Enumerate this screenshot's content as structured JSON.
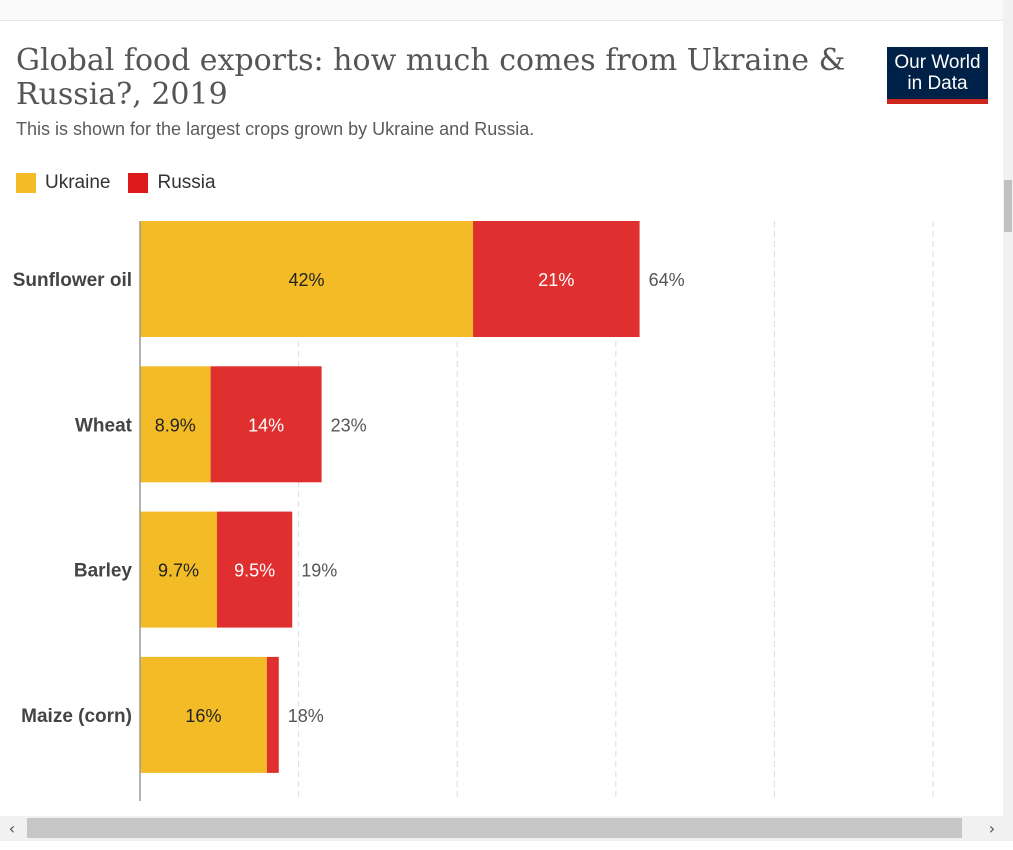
{
  "chart_data": {
    "type": "bar",
    "orientation": "horizontal",
    "stacked": true,
    "title": "Global food exports: how much comes from Ukraine & Russia?, 2019",
    "subtitle": "This is shown for the largest crops grown by Ukraine and Russia.",
    "categories": [
      "Sunflower oil",
      "Wheat",
      "Barley",
      "Maize (corn)"
    ],
    "series": [
      {
        "name": "Ukraine",
        "color": "#f3bc26",
        "values": [
          42,
          8.9,
          9.7,
          16
        ],
        "labels": [
          "42%",
          "8.9%",
          "9.7%",
          "16%"
        ]
      },
      {
        "name": "Russia",
        "color": "#e02f2f",
        "values": [
          21,
          14,
          9.5,
          1.5
        ],
        "labels": [
          "21%",
          "14%",
          "9.5%",
          ""
        ]
      }
    ],
    "totals": [
      64,
      23,
      19,
      18
    ],
    "total_labels": [
      "64%",
      "23%",
      "19%",
      "18%"
    ],
    "xlim": [
      0,
      100
    ],
    "grid": true,
    "legend_position": "top-left"
  },
  "legend_colors": {
    "Ukraine": "#f3bc26",
    "Russia": "#dd1a1a"
  },
  "logo": {
    "line1": "Our World",
    "line2": "in Data",
    "bg": "#002147",
    "accent": "#ce261e"
  },
  "scrollbar": {
    "left_icon": "chevron-left-icon",
    "right_icon": "chevron-right-icon",
    "left_glyph": "‹",
    "right_glyph": "›"
  }
}
